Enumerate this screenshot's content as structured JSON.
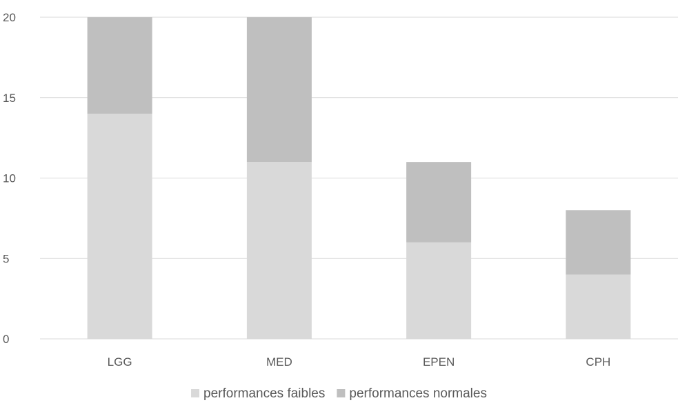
{
  "chart_data": {
    "type": "bar",
    "stacked": true,
    "title": "",
    "xlabel": "",
    "ylabel": "",
    "categories": [
      "LGG",
      "MED",
      "EPEN",
      "CPH"
    ],
    "series": [
      {
        "name": "performances faibles",
        "values": [
          14,
          11,
          6,
          4
        ],
        "color": "#d9d9d9"
      },
      {
        "name": "performances normales",
        "values": [
          6,
          9,
          5,
          4
        ],
        "color": "#bfbfbf"
      }
    ],
    "ylim": [
      0,
      20
    ],
    "yticks": [
      0,
      5,
      10,
      15,
      20
    ],
    "grid": true,
    "gridColor": "#d9d9d9",
    "legend": "bottom"
  }
}
